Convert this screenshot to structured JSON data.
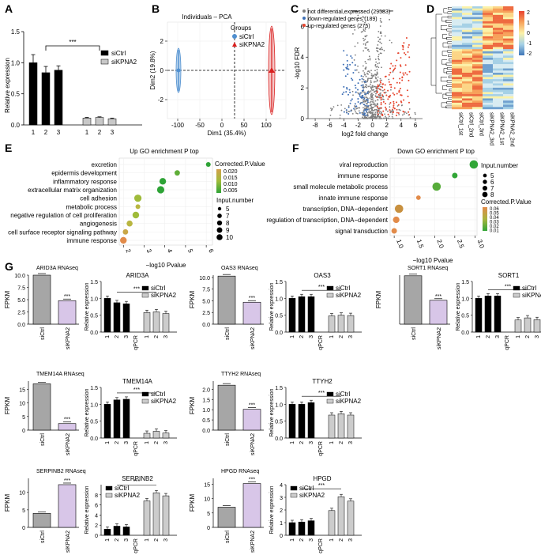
{
  "panels": {
    "A": {
      "letter": "A",
      "ylabel": "Relative expression",
      "yticks": [
        "0.0",
        "0.5",
        "1.0",
        "1.5"
      ],
      "groups": [
        {
          "name": "siCtrl",
          "color": "#000000",
          "x": [
            "1",
            "2",
            "3"
          ],
          "values": [
            1.0,
            0.84,
            0.88
          ],
          "err": [
            0.13,
            0.1,
            0.07
          ]
        },
        {
          "name": "siKPNA2",
          "color": "#c8c8c8",
          "x": [
            "1",
            "2",
            "3"
          ],
          "values": [
            0.11,
            0.12,
            0.1
          ],
          "err": [
            0.01,
            0.01,
            0.01
          ]
        }
      ],
      "sig": "***"
    },
    "B": {
      "letter": "B",
      "title": "Individuals – PCA",
      "xlabel": "Dim1 (35.4%)",
      "ylabel": "Dim2 (19.8%)",
      "xticks": [
        "-100",
        "-50",
        "0",
        "50",
        "100"
      ],
      "yticks": [
        "-2",
        "0",
        "2"
      ],
      "legend_title": "Groups",
      "legend": [
        "siCtrl",
        "siKPNA2"
      ],
      "colors": [
        "#4f8fcf",
        "#d9201f"
      ]
    },
    "C": {
      "letter": "C",
      "legend": [
        "not differential,expressed (29583)",
        "down-regulated genes (189)",
        "up-regulated genes (275)"
      ],
      "colors": [
        "#7f7f7f",
        "#3e6fb5",
        "#e6452e"
      ],
      "xlabel": "log2 fold change",
      "ylabel": "-log10 FDR",
      "xticks": [
        "-8",
        "-6",
        "-4",
        "-2",
        "0",
        "2",
        "4",
        "6"
      ],
      "yticks": [
        "0",
        "2",
        "4",
        "6"
      ]
    },
    "D": {
      "letter": "D",
      "samples": [
        "siCtrl_1st",
        "siCtrl_2nd",
        "siCtrl_3rd",
        "siKPNA2_3rd",
        "siKPNA2_1st",
        "siKPNA2_2nd"
      ],
      "scale": [
        "2",
        "1",
        "0",
        "-1",
        "-2"
      ]
    },
    "E": {
      "letter": "E",
      "title": "Up GO enrichment P top",
      "xlabel": "−log10 Pvalue",
      "xticks": [
        "2",
        "3",
        "4",
        "5",
        "6"
      ],
      "terms": [
        "excretion",
        "epidermis development",
        "inflammatory response",
        "extracellular matrix organization",
        "cell adhesion",
        "metabolic process",
        "negative regulation of cell proliferation",
        "angiogenesis",
        "cell surface receptor signaling pathway",
        "immune response"
      ],
      "x": [
        6.1,
        4.6,
        3.9,
        3.8,
        2.7,
        2.7,
        2.6,
        2.3,
        2.1,
        2.0
      ],
      "size": [
        5,
        6,
        8,
        9,
        9,
        5,
        8,
        7,
        6,
        8
      ],
      "color_title": "Corrected.P.Value",
      "color_ticks": [
        "0.020",
        "0.015",
        "0.010",
        "0.005"
      ],
      "size_title": "Input.number",
      "size_ticks": [
        "5",
        "7",
        "8",
        "9",
        "10"
      ]
    },
    "F": {
      "letter": "F",
      "title": "Down GO enrichment P top",
      "xlabel": "−log10 Pvalue",
      "xticks": [
        "1.0",
        "1.5",
        "2.0",
        "2.5",
        "3.0"
      ],
      "terms": [
        "viral reproduction",
        "immune response",
        "small molecule metabolic process",
        "innate immune response",
        "transcription, DNA−dependent",
        "regulation of transcription, DNA−dependent",
        "signal transduction"
      ],
      "x": [
        2.97,
        2.5,
        2.05,
        1.6,
        1.12,
        1.05,
        1.0
      ],
      "size": [
        8,
        5,
        8,
        4,
        8,
        6,
        5
      ],
      "size_title": "Input.number",
      "size_ticks": [
        "5",
        "6",
        "7",
        "8"
      ],
      "color_title": "Corrected.P.Value",
      "color_ticks": [
        "0.06",
        "0.05",
        "0.04",
        "0.03",
        "0.02",
        "0.01"
      ]
    },
    "G": {
      "letter": "G"
    }
  },
  "genes": [
    {
      "name": "ARID3A",
      "seq_title": "ARID3A RNAseq",
      "fpkm_ticks": [
        "0.0",
        "2.5",
        "5.0",
        "7.5",
        "10.0"
      ],
      "fpkm_max": 10,
      "fpkm": [
        10.0,
        4.8
      ],
      "qpcr_ticks": [
        "0.0",
        "0.5",
        "1.0",
        "1.5"
      ],
      "qpcr_max": 1.5,
      "ctrl": [
        1.0,
        0.87,
        0.84
      ],
      "kd": [
        0.58,
        0.6,
        0.55
      ]
    },
    {
      "name": "OAS3",
      "seq_title": "OAS3 RNAseq",
      "fpkm_ticks": [
        "0.0",
        "2.5",
        "5.0",
        "7.5",
        "10.0"
      ],
      "fpkm_max": 10.5,
      "fpkm": [
        10.3,
        4.7
      ],
      "qpcr_ticks": [
        "0.0",
        "0.5",
        "1.0",
        "1.5"
      ],
      "qpcr_max": 1.5,
      "ctrl": [
        1.0,
        1.05,
        1.05
      ],
      "kd": [
        0.48,
        0.5,
        0.49
      ]
    },
    {
      "name": "SORT1",
      "seq_title": "SORT1 RNAseq",
      "fpkm_ticks": [],
      "fpkm_max": 16,
      "fpkm": [
        15.8,
        7.8
      ],
      "qpcr_ticks": [
        "0.0",
        "0.5",
        "1.0",
        "1.5"
      ],
      "qpcr_max": 1.5,
      "ctrl": [
        1.0,
        1.07,
        1.07
      ],
      "kd": [
        0.36,
        0.42,
        0.37
      ]
    },
    {
      "name": "TMEM14A",
      "seq_title": "TMEM14A RNAseq",
      "fpkm_ticks": [
        "0",
        "5",
        "10",
        "15"
      ],
      "fpkm_max": 18,
      "fpkm": [
        17.0,
        2.4
      ],
      "qpcr_ticks": [
        "0.0",
        "0.5",
        "1.0",
        "1.5"
      ],
      "qpcr_max": 1.5,
      "ctrl": [
        1.0,
        1.13,
        1.15
      ],
      "kd": [
        0.14,
        0.2,
        0.15
      ]
    },
    {
      "name": "TTYH2",
      "seq_title": "TTYH2 RNAseq",
      "fpkm_ticks": [
        "0.0",
        "0.5",
        "1.0",
        "1.5",
        "2.0"
      ],
      "fpkm_max": 2.4,
      "fpkm": [
        2.2,
        1.02
      ],
      "qpcr_ticks": [
        "0.0",
        "0.5",
        "1.0",
        "1.5"
      ],
      "qpcr_max": 1.5,
      "ctrl": [
        1.0,
        1.0,
        1.05
      ],
      "kd": [
        0.68,
        0.72,
        0.68
      ]
    },
    {
      "name": "SERPINB2",
      "seq_title": "SERPINB2 RNAseq",
      "fpkm_ticks": [
        "0",
        "5",
        "10"
      ],
      "fpkm_max": 14,
      "fpkm": [
        4.0,
        12.2
      ],
      "qpcr_ticks": [
        "0",
        "2",
        "4",
        "6",
        "8"
      ],
      "qpcr_max": 10,
      "ctrl": [
        1.2,
        1.8,
        1.65
      ],
      "kd": [
        6.8,
        8.4,
        7.8
      ]
    },
    {
      "name": "HPGD",
      "seq_title": "HPGD RNAseq",
      "fpkm_ticks": [
        "0",
        "5",
        "10",
        "15"
      ],
      "fpkm_max": 17,
      "fpkm": [
        7.0,
        15.2
      ],
      "qpcr_ticks": [
        "0",
        "1",
        "2",
        "3",
        "4"
      ],
      "qpcr_max": 4,
      "ctrl": [
        1.0,
        1.05,
        1.15
      ],
      "kd": [
        1.95,
        3.05,
        2.7
      ]
    }
  ],
  "common": {
    "sig": "***",
    "fpkm_label": "FPKM",
    "rel_label": "Relative expression",
    "seq_groups": [
      "siCtrl",
      "siKPNA2"
    ],
    "qpcr_cats": [
      "1",
      "2",
      "3",
      "qPCR",
      "1",
      "2",
      "3"
    ],
    "legend": [
      "siCtrl",
      "siKPNA2"
    ],
    "colors": {
      "ctrl_seq": "#a6a6a6",
      "kd_seq": "#d8c6e8",
      "ctrl_qpcr": "#000000",
      "kd_qpcr": "#cccccc"
    }
  }
}
